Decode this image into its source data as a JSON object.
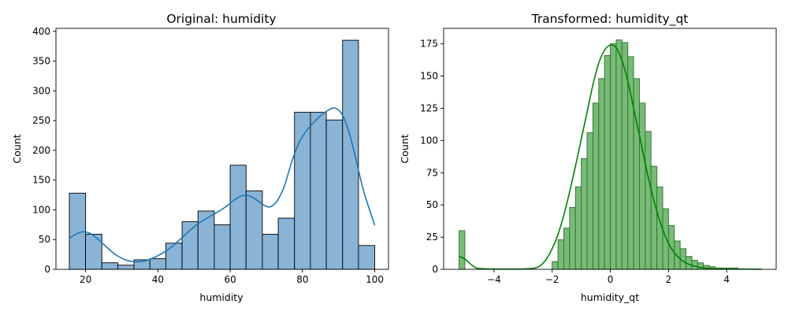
{
  "chart_data": [
    {
      "type": "histogram",
      "title": "Original: humidity",
      "xlabel": "humidity",
      "ylabel": "Count",
      "xlim": [
        11.8,
        103.8
      ],
      "ylim": [
        0,
        405
      ],
      "xticks": [
        20,
        40,
        60,
        80,
        100
      ],
      "yticks": [
        0,
        50,
        100,
        150,
        200,
        250,
        300,
        350,
        400
      ],
      "colors": {
        "bar_fill": "#8ab4d6",
        "bar_edge": "#000000",
        "kde_line": "#1f77b4"
      },
      "bins": [
        {
          "x0": 15.5,
          "x1": 20,
          "count": 128
        },
        {
          "x0": 20,
          "x1": 24.5,
          "count": 59
        },
        {
          "x0": 24.5,
          "x1": 28.9,
          "count": 11
        },
        {
          "x0": 28.9,
          "x1": 33.4,
          "count": 7
        },
        {
          "x0": 33.4,
          "x1": 37.8,
          "count": 16
        },
        {
          "x0": 37.8,
          "x1": 42.2,
          "count": 18
        },
        {
          "x0": 42.2,
          "x1": 46.7,
          "count": 44
        },
        {
          "x0": 46.7,
          "x1": 51.1,
          "count": 80
        },
        {
          "x0": 51.1,
          "x1": 55.6,
          "count": 98
        },
        {
          "x0": 55.6,
          "x1": 60,
          "count": 75
        },
        {
          "x0": 60,
          "x1": 64.4,
          "count": 175
        },
        {
          "x0": 64.4,
          "x1": 68.9,
          "count": 132
        },
        {
          "x0": 68.9,
          "x1": 73.3,
          "count": 59
        },
        {
          "x0": 73.3,
          "x1": 77.8,
          "count": 86
        },
        {
          "x0": 77.8,
          "x1": 82.2,
          "count": 264
        },
        {
          "x0": 82.2,
          "x1": 86.6,
          "count": 264
        },
        {
          "x0": 86.6,
          "x1": 91.1,
          "count": 251
        },
        {
          "x0": 91.1,
          "x1": 95.5,
          "count": 385
        },
        {
          "x0": 95.5,
          "x1": 100,
          "count": 40
        }
      ],
      "kde": {
        "x": [
          15.5,
          17,
          19,
          21,
          23,
          25,
          27,
          29,
          31,
          33,
          35,
          37,
          39,
          41,
          43,
          45,
          47,
          49,
          51,
          53,
          55,
          57,
          59,
          61,
          63,
          65,
          67,
          69,
          71,
          73,
          75,
          77,
          79,
          81,
          83,
          85,
          87,
          89,
          91,
          93,
          95,
          97,
          100
        ],
        "y": [
          52,
          58,
          63,
          61,
          53,
          42,
          31,
          22,
          16,
          13,
          13,
          15,
          20,
          26,
          34,
          44,
          55,
          66,
          76,
          84,
          91,
          98,
          106,
          116,
          123,
          124,
          118,
          109,
          105,
          115,
          140,
          180,
          212,
          232,
          246,
          258,
          267,
          271,
          260,
          228,
          180,
          130,
          74
        ]
      }
    },
    {
      "type": "histogram",
      "title": "Transformed: humidity_qt",
      "xlabel": "humidity_qt",
      "ylabel": "Count",
      "xlim": [
        -5.73,
        5.7
      ],
      "ylim": [
        0,
        187
      ],
      "xticks": [
        -4,
        -2,
        0,
        2,
        4
      ],
      "yticks": [
        0,
        25,
        50,
        75,
        100,
        125,
        150,
        175
      ],
      "colors": {
        "bar_fill": "#77bb77",
        "bar_edge": "#2f6f2f",
        "kde_line": "#008000"
      },
      "bin_start": -5.2,
      "bin_width": 0.2,
      "counts": [
        30,
        0,
        0,
        0,
        0,
        0,
        0,
        0,
        0,
        0,
        0,
        0,
        0,
        0,
        0,
        0,
        6,
        23,
        32,
        48,
        64,
        86,
        106,
        129,
        148,
        166,
        175,
        178,
        176,
        165,
        148,
        129,
        107,
        80,
        64,
        47,
        34,
        22,
        16,
        10,
        7,
        5,
        3,
        2,
        1,
        1,
        1,
        1,
        0,
        0,
        0,
        0
      ],
      "kde": {
        "x": [
          -5.2,
          -5.0,
          -4.8,
          -4.6,
          -4.4,
          -4.2,
          -4.0,
          -3.5,
          -3.0,
          -2.6,
          -2.4,
          -2.2,
          -2.0,
          -1.8,
          -1.6,
          -1.4,
          -1.2,
          -1.0,
          -0.8,
          -0.6,
          -0.4,
          -0.2,
          0.0,
          0.2,
          0.4,
          0.6,
          0.8,
          1.0,
          1.2,
          1.4,
          1.6,
          1.8,
          2.0,
          2.2,
          2.4,
          2.6,
          2.8,
          3.0,
          3.2,
          3.6,
          4.0,
          4.5,
          5.2
        ],
        "y": [
          10,
          8,
          4,
          1,
          0.5,
          0.3,
          0.2,
          0.2,
          0.3,
          1,
          3,
          8,
          16,
          27,
          42,
          60,
          80,
          101,
          122,
          143,
          160,
          170,
          174,
          172,
          162,
          146,
          125,
          104,
          82,
          62,
          45,
          31,
          20,
          13,
          8,
          5,
          3,
          2,
          1,
          0.5,
          0.3,
          0.2,
          0.1
        ]
      }
    }
  ]
}
